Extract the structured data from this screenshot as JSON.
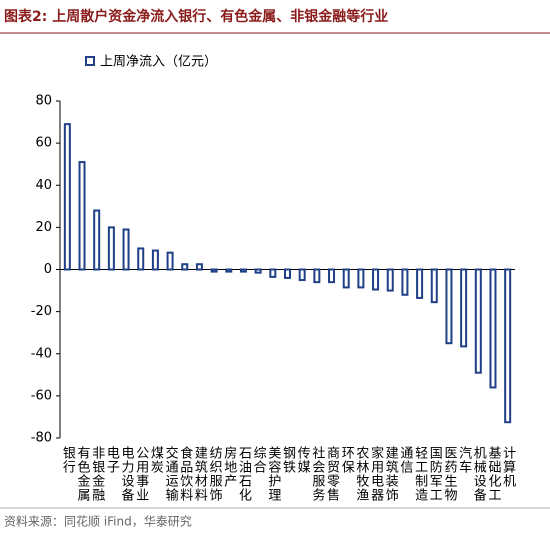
{
  "chart_data": {
    "type": "bar",
    "title": "图表2:  上周散户资金净流入银行、有色金属、非银金融等行业",
    "source": "资料来源：同花顺 iFind，华泰研究",
    "categories": [
      "银行",
      "有色金属",
      "非银金融",
      "电子",
      "电力设备",
      "公用事业",
      "煤炭",
      "交通运输",
      "食品饮料",
      "建筑材料",
      "纺织服饰",
      "房地产",
      "石油石化",
      "综合",
      "美容护理",
      "钢铁",
      "传媒",
      "社会服务",
      "商贸零售",
      "环保",
      "农林牧渔",
      "家用电器",
      "建筑装饰",
      "通信",
      "轻工制造",
      "国防军工",
      "医药生物",
      "汽车",
      "机械设备",
      "基础化工",
      "计算机"
    ],
    "series": [
      {
        "name": "上周净流入（亿元）",
        "color": "#1f3f86",
        "values": [
          69,
          51,
          28,
          20,
          19,
          10,
          9,
          8,
          2.5,
          2.5,
          -1,
          -1,
          -1,
          -1.5,
          -3.5,
          -4,
          -5,
          -6,
          -6,
          -8.5,
          -8.5,
          -9.5,
          -10,
          -12,
          -13.5,
          -15.5,
          -35,
          -36.5,
          -49,
          -56,
          -72.5
        ]
      }
    ],
    "ylim": [
      -80,
      80
    ],
    "yticks": [
      -80,
      -60,
      -40,
      -20,
      0,
      20,
      40,
      60,
      80
    ],
    "legend": "top-left"
  }
}
